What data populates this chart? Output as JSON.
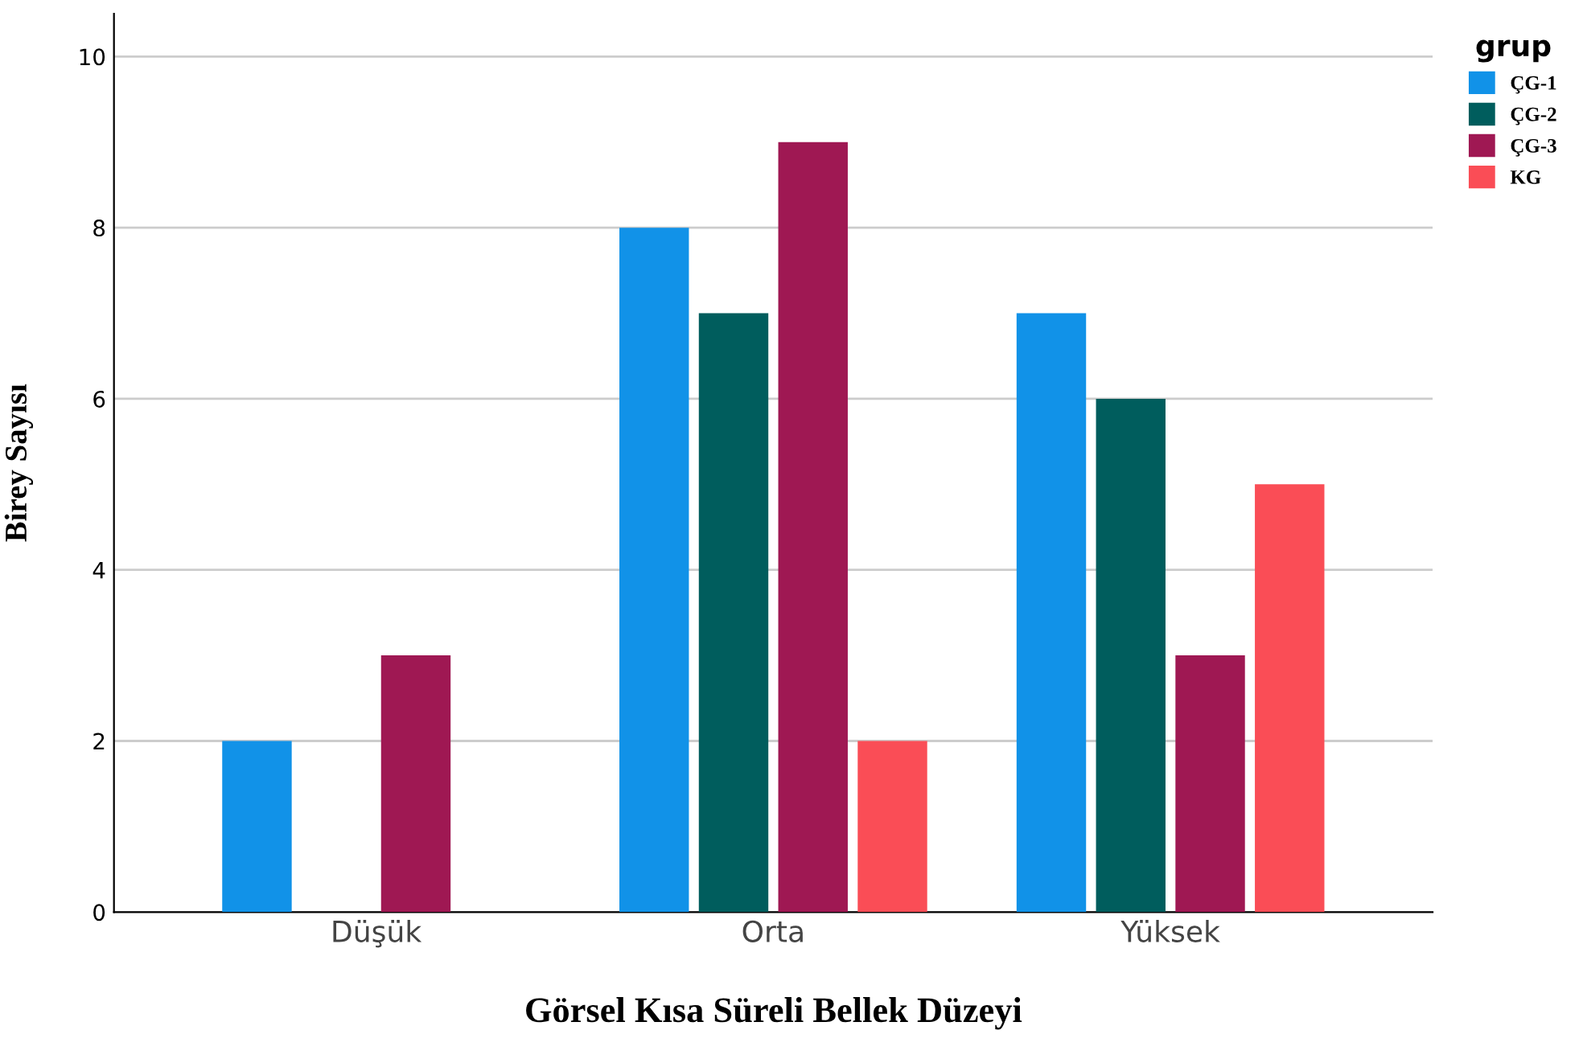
{
  "chart_data": {
    "type": "bar",
    "xlabel": "Görsel Kısa Süreli Bellek Düzeyi",
    "ylabel": "Birey Sayısı",
    "legend_title": "grup",
    "categories": [
      "Düşük",
      "Orta",
      "Yüksek"
    ],
    "series": [
      {
        "name": "ÇG-1",
        "color": "#1192e8",
        "values": [
          2,
          8,
          7
        ]
      },
      {
        "name": "ÇG-2",
        "color": "#005d5d",
        "values": [
          null,
          7,
          6
        ]
      },
      {
        "name": "ÇG-3",
        "color": "#9f1853",
        "values": [
          3,
          9,
          3
        ]
      },
      {
        "name": "KG",
        "color": "#fa4d56",
        "values": [
          null,
          2,
          5
        ]
      }
    ],
    "ylim": [
      0,
      10.5
    ],
    "yticks": [
      0,
      2,
      4,
      6,
      8,
      10
    ],
    "grid": "y",
    "legend": "top right"
  }
}
